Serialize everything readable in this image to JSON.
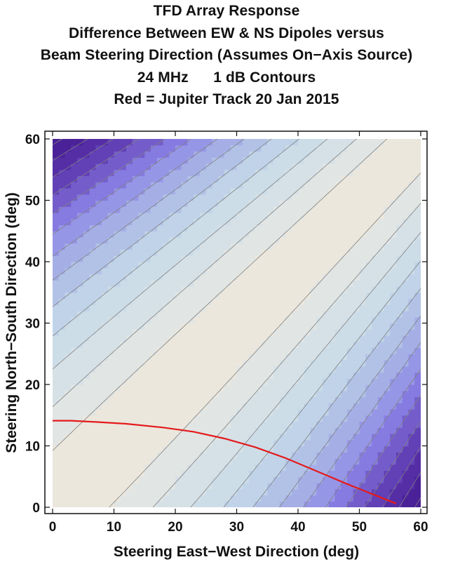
{
  "chart_data": {
    "type": "contour",
    "title_lines": [
      "TFD Array Response",
      "Difference Between EW & NS Dipoles versus",
      "Beam Steering Direction (Assumes On−Axis Source)",
      "24 MHz      1 dB Contours",
      "Red = Jupiter Track 20 Jan 2015"
    ],
    "xlabel": "Steering East−West Direction (deg)",
    "ylabel": "Steering North−South Direction (deg)",
    "xlim": [
      0,
      60
    ],
    "ylim": [
      0,
      60
    ],
    "xticks": [
      "0",
      "10",
      "20",
      "30",
      "40",
      "50",
      "60"
    ],
    "yticks": [
      "0",
      "10",
      "20",
      "30",
      "40",
      "50",
      "60"
    ],
    "x_tick_values": [
      0,
      10,
      20,
      30,
      40,
      50,
      60
    ],
    "y_tick_values": [
      0,
      10,
      20,
      30,
      40,
      50,
      60
    ],
    "contour_interval_db": 1,
    "colormap": [
      "#efe8da",
      "#dde4e6",
      "#c6dae8",
      "#a9b7e6",
      "#8c84e6",
      "#5c37b0",
      "#4a1f96"
    ],
    "contour_line_color": "#808080",
    "track_color": "#e41a1c",
    "jupiter_track": {
      "x": [
        0,
        3,
        7,
        12,
        18,
        23,
        28,
        33,
        38,
        43,
        48,
        52,
        56
      ],
      "y": [
        14.1,
        14.1,
        13.9,
        13.6,
        13.0,
        12.3,
        11.2,
        9.8,
        8.0,
        5.9,
        3.8,
        2.2,
        0.6
      ]
    }
  }
}
